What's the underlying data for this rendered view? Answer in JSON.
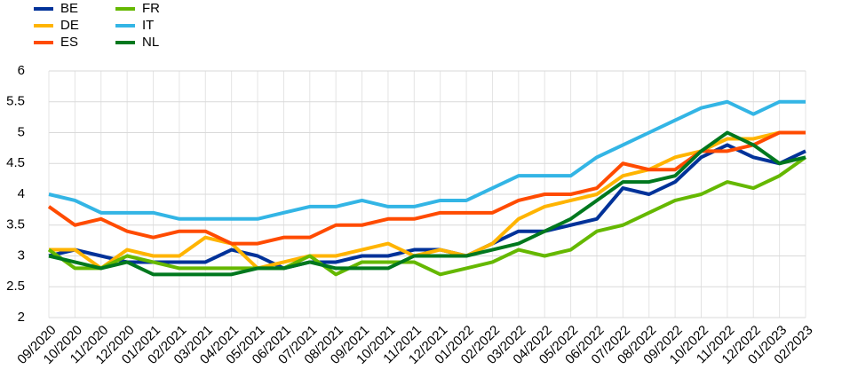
{
  "chart_data": {
    "type": "line",
    "categories": [
      "09/2020",
      "10/2020",
      "11/2020",
      "12/2020",
      "01/2021",
      "02/2021",
      "03/2021",
      "04/2021",
      "05/2021",
      "06/2021",
      "07/2021",
      "08/2021",
      "09/2021",
      "10/2021",
      "11/2021",
      "12/2021",
      "01/2022",
      "02/2022",
      "03/2022",
      "04/2022",
      "05/2022",
      "06/2022",
      "07/2022",
      "08/2022",
      "09/2022",
      "10/2022",
      "11/2022",
      "12/2022",
      "01/2023",
      "02/2023"
    ],
    "series": [
      {
        "name": "BE",
        "color": "#003299",
        "values": [
          3.0,
          3.1,
          3.0,
          2.9,
          2.9,
          2.9,
          2.9,
          3.1,
          3.0,
          2.8,
          2.9,
          2.9,
          3.0,
          3.0,
          3.1,
          3.1,
          3.0,
          3.2,
          3.4,
          3.4,
          3.5,
          3.6,
          4.1,
          4.0,
          4.2,
          4.6,
          4.8,
          4.6,
          4.5,
          4.7
        ]
      },
      {
        "name": "DE",
        "color": "#ffb400",
        "values": [
          3.1,
          3.1,
          2.8,
          3.1,
          3.0,
          3.0,
          3.3,
          3.2,
          2.8,
          2.9,
          3.0,
          3.0,
          3.1,
          3.2,
          3.0,
          3.1,
          3.0,
          3.2,
          3.6,
          3.8,
          3.9,
          4.0,
          4.3,
          4.4,
          4.6,
          4.7,
          4.9,
          4.9,
          5.0,
          5.0
        ]
      },
      {
        "name": "ES",
        "color": "#ff4b00",
        "values": [
          3.8,
          3.5,
          3.6,
          3.4,
          3.3,
          3.4,
          3.4,
          3.2,
          3.2,
          3.3,
          3.3,
          3.5,
          3.5,
          3.6,
          3.6,
          3.7,
          3.7,
          3.7,
          3.9,
          4.0,
          4.0,
          4.1,
          4.5,
          4.4,
          4.4,
          4.7,
          4.7,
          4.8,
          5.0,
          5.0
        ]
      },
      {
        "name": "FR",
        "color": "#65b800",
        "values": [
          3.1,
          2.8,
          2.8,
          3.0,
          2.9,
          2.8,
          2.8,
          2.8,
          2.8,
          2.8,
          3.0,
          2.7,
          2.9,
          2.9,
          2.9,
          2.7,
          2.8,
          2.9,
          3.1,
          3.0,
          3.1,
          3.4,
          3.5,
          3.7,
          3.9,
          4.0,
          4.2,
          4.1,
          4.3,
          4.6
        ]
      },
      {
        "name": "IT",
        "color": "#33b5e5",
        "values": [
          4.0,
          3.9,
          3.7,
          3.7,
          3.7,
          3.6,
          3.6,
          3.6,
          3.6,
          3.7,
          3.8,
          3.8,
          3.9,
          3.8,
          3.8,
          3.9,
          3.9,
          4.1,
          4.3,
          4.3,
          4.3,
          4.6,
          4.8,
          5.0,
          5.2,
          5.4,
          5.5,
          5.3,
          5.5,
          5.5
        ]
      },
      {
        "name": "NL",
        "color": "#00781e",
        "values": [
          3.0,
          2.9,
          2.8,
          2.9,
          2.7,
          2.7,
          2.7,
          2.7,
          2.8,
          2.8,
          2.9,
          2.8,
          2.8,
          2.8,
          3.0,
          3.0,
          3.0,
          3.1,
          3.2,
          3.4,
          3.6,
          3.9,
          4.2,
          4.2,
          4.3,
          4.7,
          5.0,
          4.8,
          4.5,
          4.6
        ]
      }
    ],
    "ylim": [
      2,
      6
    ],
    "yticks": [
      2,
      2.5,
      3,
      3.5,
      4,
      4.5,
      5,
      5.5,
      6
    ],
    "grid": true,
    "legend": "top-left"
  }
}
